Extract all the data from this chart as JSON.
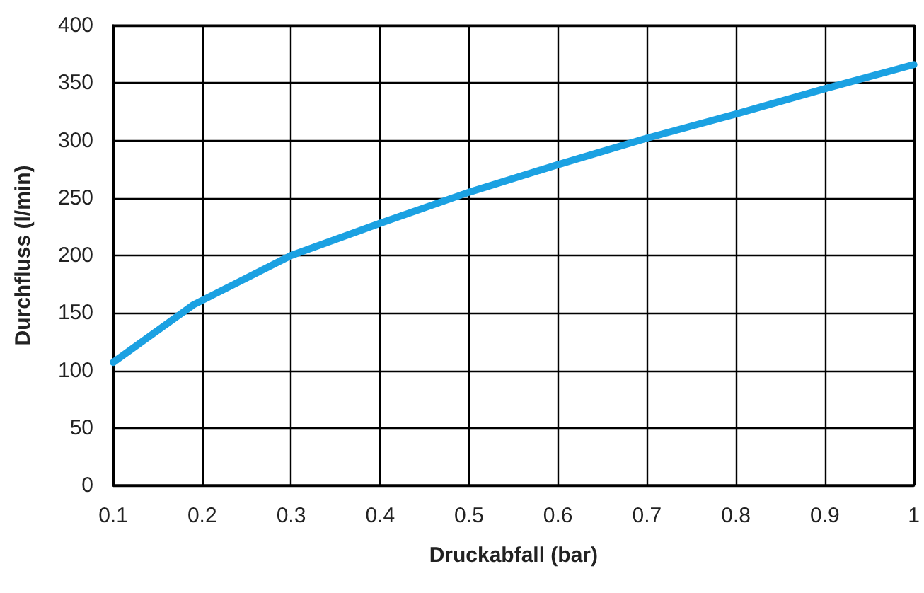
{
  "chart_data": {
    "type": "line",
    "xlabel": "Druckabfall (bar)",
    "ylabel": "Durchfluss (l/min)",
    "x": [
      0.1,
      0.19,
      0.3,
      0.4,
      0.5,
      0.6,
      0.7,
      0.8,
      0.9,
      1.0
    ],
    "series": [
      {
        "color": "#1ba1e2",
        "values": [
          107,
          157,
          200,
          228,
          255,
          279,
          302,
          323,
          345,
          366
        ]
      }
    ],
    "xlim": [
      0.1,
      1
    ],
    "xticks": [
      0.1,
      0.2,
      0.3,
      0.4,
      0.5,
      0.6,
      0.7,
      0.8,
      0.9,
      1
    ],
    "ylim": [
      0,
      400
    ],
    "yticks": [
      0,
      50,
      100,
      150,
      200,
      250,
      300,
      350,
      400
    ],
    "grid": true,
    "marker": "none",
    "line_style": "solid"
  }
}
